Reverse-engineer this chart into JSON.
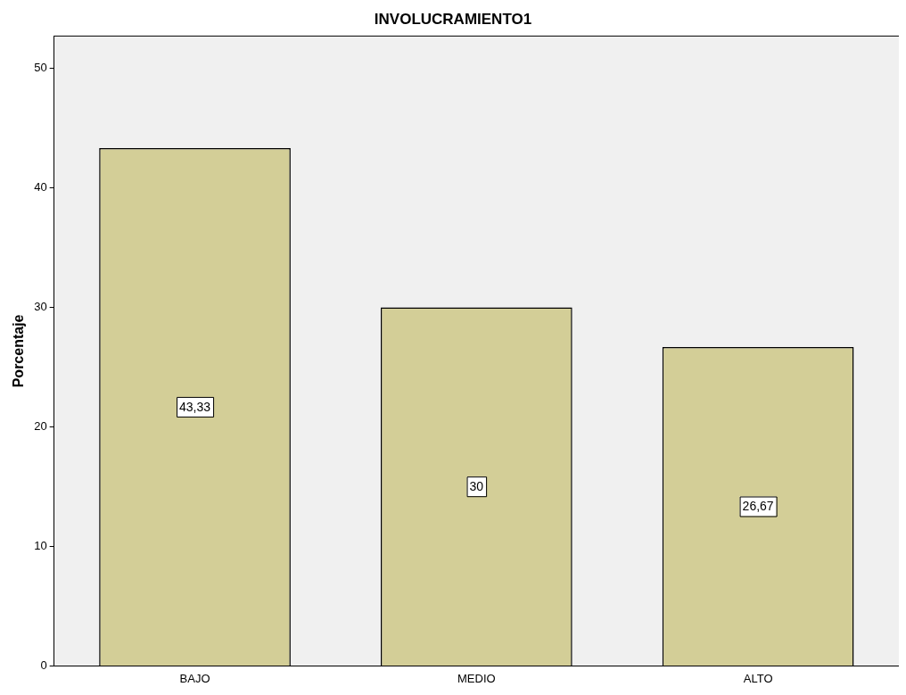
{
  "chart_data": {
    "type": "bar",
    "title": "INVOLUCRAMIENTO1",
    "ylabel": "Porcentaje",
    "categories": [
      "BAJO",
      "MEDIO",
      "ALTO"
    ],
    "values": [
      43.33,
      30,
      26.67
    ],
    "value_labels": [
      "43,33",
      "30",
      "26,67"
    ],
    "color": "#d3ce97",
    "ylim": [
      0,
      52.7
    ],
    "yticks": [
      0,
      10,
      20,
      30,
      40,
      50
    ],
    "grid": false,
    "legend": false
  }
}
